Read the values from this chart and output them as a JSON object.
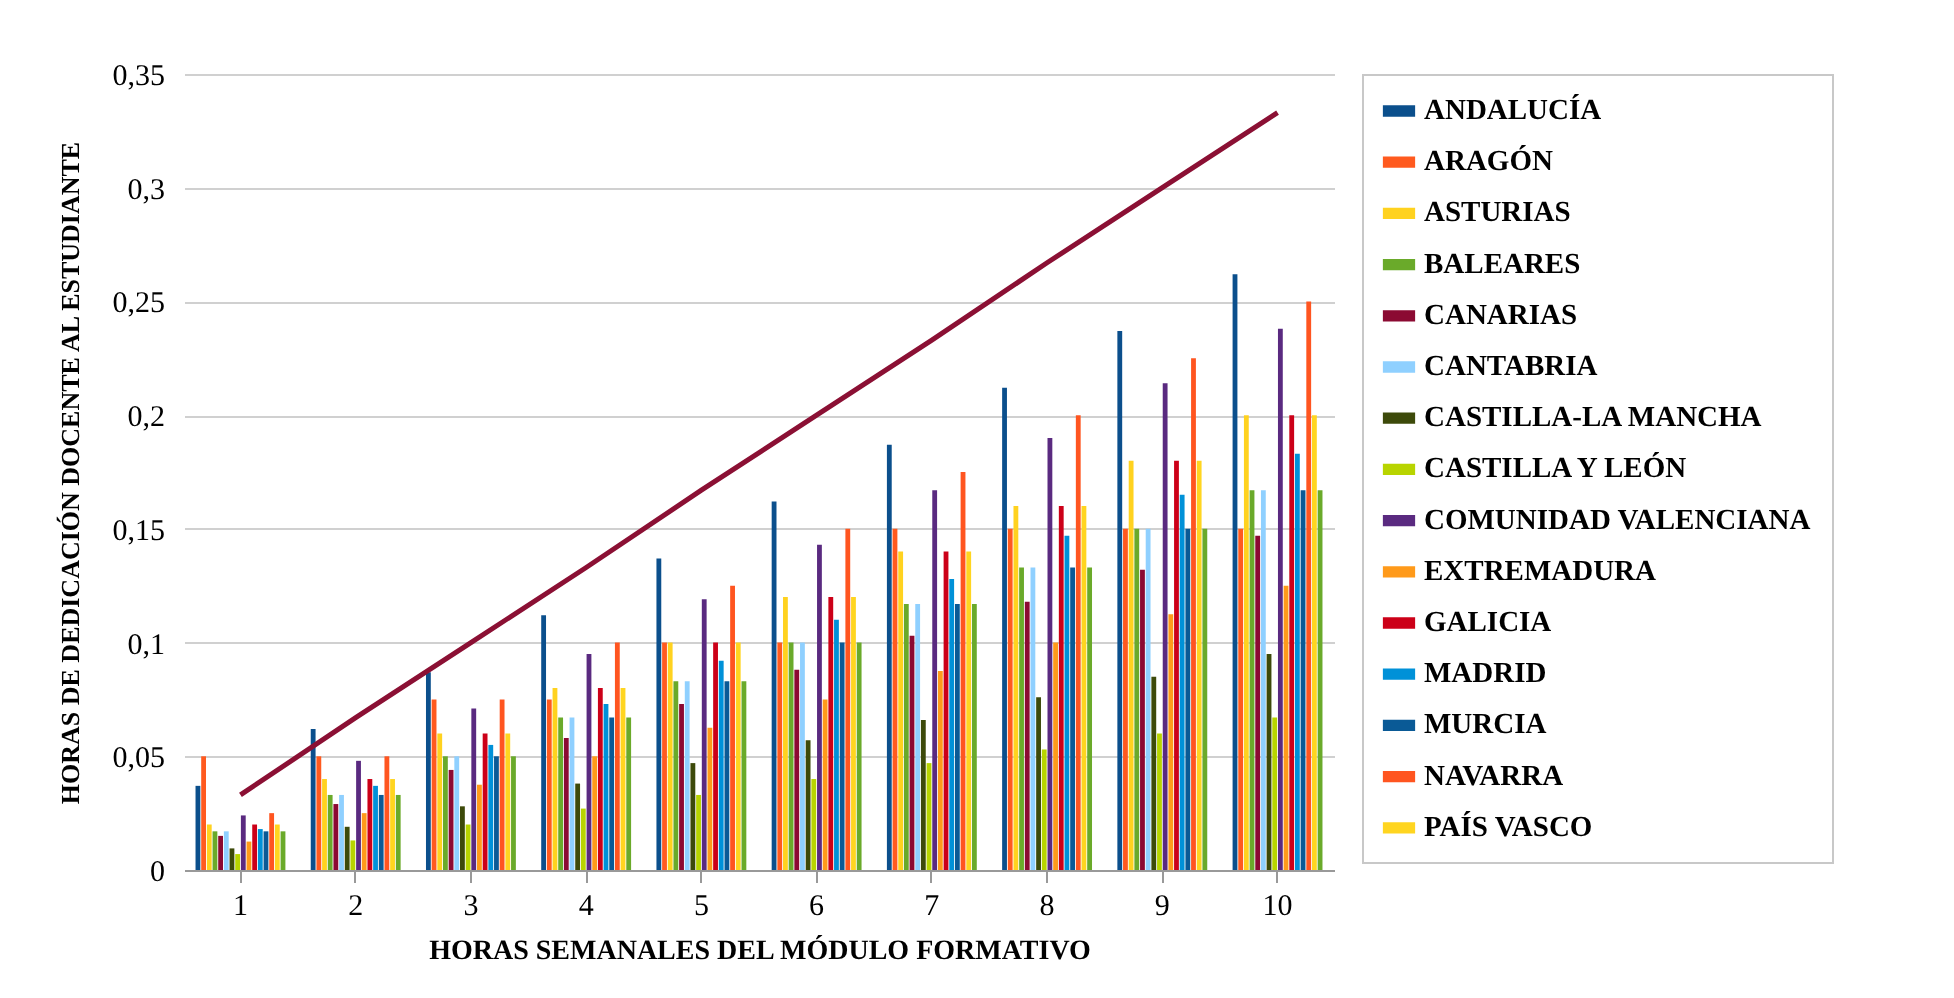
{
  "chart_data": {
    "type": "bar",
    "xlabel": "HORAS SEMANALES DEL MÓDULO FORMATIVO",
    "ylabel": "HORAS DE DEDICACIÓN DOCENTE AL ESTUDIANTE",
    "categories": [
      "1",
      "2",
      "3",
      "4",
      "5",
      "6",
      "7",
      "8",
      "9",
      "10"
    ],
    "ylim": [
      0,
      0.35
    ],
    "yticks": [
      {
        "value": 0,
        "label": "0"
      },
      {
        "value": 0.05,
        "label": "0,05"
      },
      {
        "value": 0.1,
        "label": "0,1"
      },
      {
        "value": 0.15,
        "label": "0,15"
      },
      {
        "value": 0.2,
        "label": "0,2"
      },
      {
        "value": 0.25,
        "label": "0,25"
      },
      {
        "value": 0.3,
        "label": "0,3"
      },
      {
        "value": 0.35,
        "label": "0,35"
      }
    ],
    "grid": "y",
    "legend": "right",
    "series": [
      {
        "name": "ANDALUCÍA",
        "color": "#0b4f8c",
        "values": [
          0.037,
          0.062,
          0.087,
          0.112,
          0.137,
          0.162,
          0.187,
          0.212,
          0.237,
          0.262
        ]
      },
      {
        "name": "ARAGÓN",
        "color": "#ff5a1f",
        "values": [
          0.05,
          0.05,
          0.075,
          0.075,
          0.1,
          0.1,
          0.15,
          0.15,
          0.15,
          0.15
        ]
      },
      {
        "name": "ASTURIAS",
        "color": "#ffd21f",
        "values": [
          0.02,
          0.04,
          0.06,
          0.08,
          0.1,
          0.12,
          0.14,
          0.16,
          0.18,
          0.2
        ]
      },
      {
        "name": "BALEARES",
        "color": "#6aaa2a",
        "values": [
          0.017,
          0.033,
          0.05,
          0.067,
          0.083,
          0.1,
          0.117,
          0.133,
          0.15,
          0.167
        ]
      },
      {
        "name": "CANARIAS",
        "color": "#8b0a32",
        "values": [
          0.015,
          0.029,
          0.044,
          0.058,
          0.073,
          0.088,
          0.103,
          0.118,
          0.132,
          0.147
        ]
      },
      {
        "name": "CANTABRIA",
        "color": "#8fd0ff",
        "values": [
          0.017,
          0.033,
          0.05,
          0.067,
          0.083,
          0.1,
          0.117,
          0.133,
          0.15,
          0.167
        ]
      },
      {
        "name": "CASTILLA-LA MANCHA",
        "color": "#3d4a0a",
        "values": [
          0.0095,
          0.019,
          0.028,
          0.038,
          0.047,
          0.057,
          0.066,
          0.076,
          0.085,
          0.095
        ]
      },
      {
        "name": "CASTILLA Y LEÓN",
        "color": "#b8d400",
        "values": [
          0.007,
          0.013,
          0.02,
          0.027,
          0.033,
          0.04,
          0.047,
          0.053,
          0.06,
          0.067
        ]
      },
      {
        "name": "COMUNIDAD VALENCIANA",
        "color": "#5a2a80",
        "values": [
          0.024,
          0.048,
          0.071,
          0.095,
          0.119,
          0.143,
          0.167,
          0.19,
          0.214,
          0.238
        ]
      },
      {
        "name": "EXTREMADURA",
        "color": "#ff9a1a",
        "values": [
          0.0125,
          0.025,
          0.0375,
          0.05,
          0.0625,
          0.075,
          0.0875,
          0.1,
          0.1125,
          0.125
        ]
      },
      {
        "name": "GALICIA",
        "color": "#cc0018",
        "values": [
          0.02,
          0.04,
          0.06,
          0.08,
          0.1,
          0.12,
          0.14,
          0.16,
          0.18,
          0.2
        ]
      },
      {
        "name": "MADRID",
        "color": "#0091d8",
        "values": [
          0.018,
          0.037,
          0.055,
          0.073,
          0.092,
          0.11,
          0.128,
          0.147,
          0.165,
          0.183
        ]
      },
      {
        "name": "MURCIA",
        "color": "#0a5a96",
        "values": [
          0.017,
          0.033,
          0.05,
          0.067,
          0.083,
          0.1,
          0.117,
          0.133,
          0.15,
          0.167
        ]
      },
      {
        "name": "NAVARRA",
        "color": "#ff5520",
        "values": [
          0.025,
          0.05,
          0.075,
          0.1,
          0.125,
          0.15,
          0.175,
          0.2,
          0.225,
          0.25
        ]
      },
      {
        "name": "PAÍS VASCO",
        "color": "#ffd520",
        "values": [
          0.02,
          0.04,
          0.06,
          0.08,
          0.1,
          0.12,
          0.14,
          0.16,
          0.18,
          0.2
        ]
      },
      {
        "color": "#6aaa2a",
        "values": [
          0.017,
          0.033,
          0.05,
          0.067,
          0.083,
          0.1,
          0.117,
          0.133,
          0.15,
          0.167
        ]
      },
      {
        "type": "line",
        "color": "#8b1034",
        "values": [
          0.033,
          0.067,
          0.1,
          0.133,
          0.167,
          0.2,
          0.233,
          0.267,
          0.3,
          0.333
        ]
      }
    ]
  }
}
